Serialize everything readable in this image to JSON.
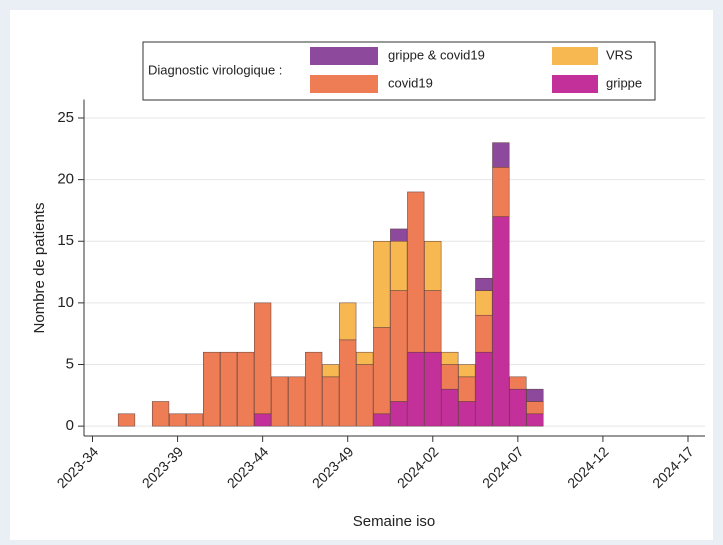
{
  "chart_data": {
    "type": "bar",
    "stacked": true,
    "x_label": "Semaine iso",
    "y_label": "Nombre de patients",
    "legend_title": "Diagnostic virologique :",
    "x": [
      2,
      4,
      5,
      6,
      7,
      8,
      9,
      10,
      11,
      12,
      13,
      14,
      15,
      16,
      17,
      18,
      19,
      20,
      21,
      22,
      23,
      24,
      25,
      26
    ],
    "series": [
      {
        "name": "grippe",
        "color": "#c4309a",
        "values": [
          0,
          0,
          0,
          0,
          0,
          0,
          0,
          1,
          0,
          0,
          0,
          0,
          0,
          0,
          1,
          2,
          6,
          6,
          3,
          2,
          6,
          17,
          3,
          1
        ]
      },
      {
        "name": "covid19",
        "color": "#ee7d55",
        "values": [
          1,
          2,
          1,
          1,
          6,
          6,
          6,
          9,
          4,
          4,
          6,
          4,
          7,
          5,
          7,
          9,
          13,
          5,
          2,
          2,
          3,
          4,
          1,
          1
        ]
      },
      {
        "name": "VRS",
        "color": "#f8b851",
        "values": [
          0,
          0,
          0,
          0,
          0,
          0,
          0,
          0,
          0,
          0,
          0,
          1,
          3,
          1,
          7,
          4,
          0,
          4,
          1,
          1,
          2,
          0,
          0,
          0
        ]
      },
      {
        "name": "grippe & covid19",
        "color": "#8d4a9d",
        "values": [
          0,
          0,
          0,
          0,
          0,
          0,
          0,
          0,
          0,
          0,
          0,
          0,
          0,
          0,
          0,
          1,
          0,
          0,
          0,
          0,
          1,
          2,
          0,
          1
        ]
      }
    ],
    "xlim": [
      -0.5,
      36
    ],
    "ylim": [
      -0.8,
      26.5
    ],
    "xticks": [
      {
        "value": 0,
        "label": "2023-34"
      },
      {
        "value": 5,
        "label": "2023-39"
      },
      {
        "value": 10,
        "label": "2023-44"
      },
      {
        "value": 15,
        "label": "2023-49"
      },
      {
        "value": 20,
        "label": "2024-02"
      },
      {
        "value": 25,
        "label": "2024-07"
      },
      {
        "value": 30,
        "label": "2024-12"
      },
      {
        "value": 35,
        "label": "2024-17"
      }
    ],
    "yticks": [
      0,
      5,
      10,
      15,
      20,
      25
    ],
    "grid": true
  }
}
